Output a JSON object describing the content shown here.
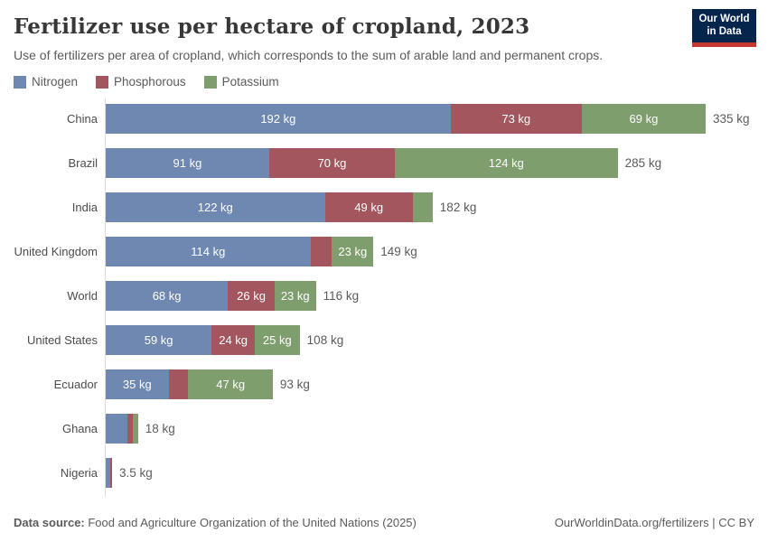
{
  "header": {
    "title": "Fertilizer use per hectare of cropland, 2023",
    "subtitle": "Use of fertilizers per area of cropland, which corresponds to the sum of arable land and permanent crops."
  },
  "logo": {
    "line1": "Our World",
    "line2": "in Data"
  },
  "colors": {
    "nitrogen": "#6e88b2",
    "phosphorous": "#a4565e",
    "potassium": "#7f9e6d",
    "logo_bg": "#06254d",
    "logo_stripe": "#c5382f",
    "axis_line": "#dcdcdc",
    "muted_text": "#5b5b5b"
  },
  "legend": [
    {
      "label": "Nitrogen",
      "color": "#6e88b2"
    },
    {
      "label": "Phosphorous",
      "color": "#a4565e"
    },
    {
      "label": "Potassium",
      "color": "#7f9e6d"
    }
  ],
  "chart_data": {
    "type": "bar",
    "orientation": "horizontal",
    "stacked": true,
    "unit": "kg",
    "xlim": [
      0,
      335
    ],
    "grid": false,
    "legend_position": "top-left",
    "series_names": [
      "Nitrogen",
      "Phosphorous",
      "Potassium"
    ],
    "series_colors": [
      "#6e88b2",
      "#a4565e",
      "#7f9e6d"
    ],
    "rows": [
      {
        "label": "China",
        "values": [
          192,
          73,
          69
        ],
        "segment_labels": [
          "192 kg",
          "73 kg",
          "69 kg"
        ],
        "total": 335,
        "total_label": "335 kg"
      },
      {
        "label": "Brazil",
        "values": [
          91,
          70,
          124
        ],
        "segment_labels": [
          "91 kg",
          "70 kg",
          "124 kg"
        ],
        "total": 285,
        "total_label": "285 kg"
      },
      {
        "label": "India",
        "values": [
          122,
          49,
          11
        ],
        "segment_labels": [
          "122 kg",
          "49 kg",
          ""
        ],
        "total": 182,
        "total_label": "182 kg"
      },
      {
        "label": "United Kingdom",
        "values": [
          114,
          12,
          23
        ],
        "segment_labels": [
          "114 kg",
          "",
          "23 kg"
        ],
        "total": 149,
        "total_label": "149 kg"
      },
      {
        "label": "World",
        "values": [
          68,
          26,
          23
        ],
        "segment_labels": [
          "68 kg",
          "26 kg",
          "23 kg"
        ],
        "total": 116,
        "total_label": "116 kg"
      },
      {
        "label": "United States",
        "values": [
          59,
          24,
          25
        ],
        "segment_labels": [
          "59 kg",
          "24 kg",
          "25 kg"
        ],
        "total": 108,
        "total_label": "108 kg"
      },
      {
        "label": "Ecuador",
        "values": [
          35,
          11,
          47
        ],
        "segment_labels": [
          "35 kg",
          "",
          "47 kg"
        ],
        "total": 93,
        "total_label": "93 kg"
      },
      {
        "label": "Ghana",
        "values": [
          12,
          3,
          3
        ],
        "segment_labels": [
          "",
          "",
          ""
        ],
        "total": 18,
        "total_label": "18 kg"
      },
      {
        "label": "Nigeria",
        "values": [
          2.5,
          1,
          0
        ],
        "segment_labels": [
          "",
          "",
          ""
        ],
        "total": 3.5,
        "total_label": "3.5 kg"
      }
    ]
  },
  "footer": {
    "source_prefix": "Data source:",
    "source_text": " Food and Agriculture Organization of the United Nations (2025)",
    "right_text": "OurWorldinData.org/fertilizers | CC BY"
  }
}
